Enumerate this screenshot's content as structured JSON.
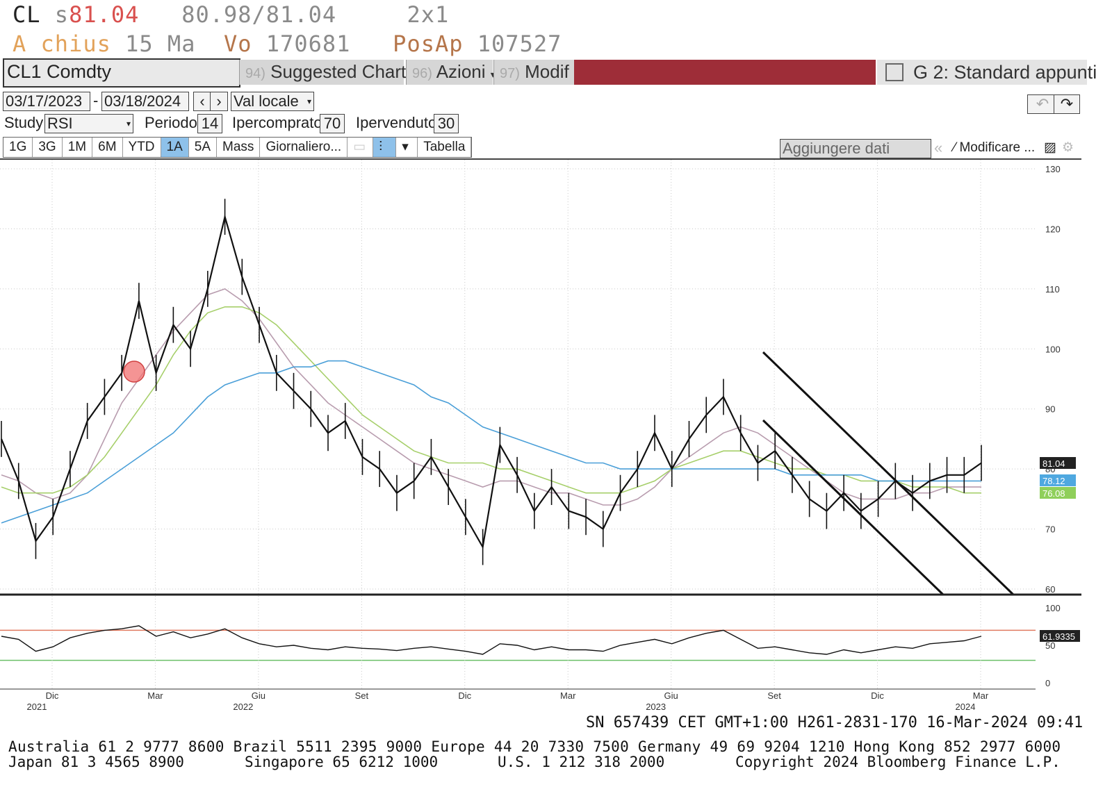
{
  "header": {
    "ticker": "CL",
    "last_prefix": "s",
    "last": "81.04",
    "bid_ask": "80.98/81.04",
    "size": "2x1",
    "line2": {
      "a": "A",
      "chius": "chius",
      "ma": "15 Ma",
      "vo_label": "Vo",
      "vo": "170681",
      "posap_label": "PosAp",
      "posap": "107527"
    }
  },
  "toolbar": {
    "security": "CL1 Comdty",
    "menu_suggested_num": "94)",
    "menu_suggested": "Suggested Charts",
    "menu_azioni_num": "96)",
    "menu_azioni": "Azioni",
    "menu_modif_num": "97)",
    "menu_modif": "Modif",
    "layout": "G 2: Standard appunti"
  },
  "controls": {
    "date_from": "03/17/2023",
    "date_to": "03/18/2024",
    "dash": "-",
    "currency": "Val locale",
    "study_label": "Study",
    "study_value": "RSI",
    "periodo_label": "Periodo",
    "periodo_value": "14",
    "ipercomprato_label": "Ipercomprato",
    "ipercomprato_value": "70",
    "ipervenduto_label": "Ipervenduto",
    "ipervenduto_value": "30",
    "periods": [
      "1G",
      "3G",
      "1M",
      "6M",
      "YTD",
      "1A",
      "5A",
      "Mass",
      "Giornaliero..."
    ],
    "selected_period": "1A",
    "tabella": "Tabella",
    "aggiungere": "Aggiungere dati",
    "modificare": "Modificare ..."
  },
  "chart_data": {
    "type": "line",
    "price_axis": {
      "ylim": [
        60,
        130
      ],
      "ticks": [
        60,
        70,
        80,
        90,
        100,
        110,
        120,
        130
      ]
    },
    "rsi_axis": {
      "ylim": [
        0,
        100
      ],
      "ticks": [
        0,
        50,
        100
      ],
      "overbought": 70,
      "oversold": 30
    },
    "x_labels": [
      {
        "month": "Dic",
        "year": "2021"
      },
      {
        "month": "Mar",
        "year": ""
      },
      {
        "month": "Giu",
        "year": "2022"
      },
      {
        "month": "Set",
        "year": ""
      },
      {
        "month": "Dic",
        "year": ""
      },
      {
        "month": "Mar",
        "year": ""
      },
      {
        "month": "Giu",
        "year": "2023"
      },
      {
        "month": "Set",
        "year": ""
      },
      {
        "month": "Dic",
        "year": ""
      },
      {
        "month": "Mar",
        "year": "2024"
      }
    ],
    "series": [
      {
        "key": "price",
        "color": "#111111",
        "values": [
          85,
          78,
          68,
          72,
          80,
          88,
          92,
          96,
          108,
          96,
          104,
          100,
          110,
          122,
          112,
          104,
          96,
          93,
          90,
          86,
          88,
          82,
          80,
          76,
          78,
          82,
          77,
          72,
          67,
          84,
          79,
          73,
          77,
          73,
          72,
          70,
          76,
          80,
          86,
          80,
          85,
          89,
          92,
          86,
          81,
          83,
          79,
          75,
          73,
          76,
          73,
          75,
          78,
          76,
          78,
          79,
          79,
          81
        ]
      },
      {
        "key": "ma_fast",
        "color": "#b89cae",
        "values": [
          79,
          78,
          76,
          75,
          76,
          79,
          85,
          91,
          95,
          99,
          103,
          106,
          109,
          110,
          108,
          105,
          101,
          97,
          94,
          91,
          89,
          87,
          85,
          83,
          81,
          80,
          79,
          78,
          77,
          78,
          78,
          77,
          76,
          76,
          75,
          74,
          74,
          75,
          77,
          80,
          82,
          84,
          86,
          87,
          86,
          84,
          82,
          80,
          78,
          76,
          75,
          75,
          75,
          76,
          76,
          77,
          77,
          77
        ]
      },
      {
        "key": "ma_mid",
        "color": "#a6cf6a",
        "values": [
          77,
          76,
          76,
          76,
          77,
          79,
          82,
          86,
          90,
          94,
          99,
          103,
          106,
          107,
          107,
          106,
          104,
          101,
          98,
          95,
          92,
          89,
          87,
          85,
          83,
          82,
          81,
          81,
          81,
          80,
          80,
          79,
          78,
          77,
          76,
          76,
          76,
          77,
          78,
          80,
          81,
          82,
          83,
          83,
          82,
          81,
          80,
          80,
          79,
          79,
          78,
          78,
          78,
          77,
          77,
          77,
          76,
          76
        ]
      },
      {
        "key": "ma_slow",
        "color": "#4a9fd8",
        "values": [
          71,
          72,
          73,
          74,
          75,
          76,
          78,
          80,
          82,
          84,
          86,
          89,
          92,
          94,
          95,
          96,
          96,
          97,
          97,
          98,
          98,
          97,
          96,
          95,
          94,
          92,
          91,
          89,
          87,
          86,
          85,
          84,
          83,
          82,
          81,
          81,
          80,
          80,
          80,
          80,
          80,
          80,
          80,
          80,
          80,
          80,
          79,
          79,
          79,
          79,
          79,
          78,
          78,
          78,
          78,
          78,
          78,
          78
        ]
      },
      {
        "key": "rsi",
        "color": "#111111",
        "values": [
          62,
          58,
          42,
          48,
          60,
          66,
          70,
          72,
          76,
          62,
          68,
          60,
          65,
          72,
          60,
          52,
          48,
          50,
          46,
          44,
          48,
          46,
          45,
          43,
          46,
          48,
          45,
          42,
          38,
          52,
          50,
          44,
          48,
          44,
          44,
          42,
          50,
          54,
          58,
          52,
          60,
          66,
          70,
          58,
          46,
          48,
          44,
          40,
          38,
          44,
          40,
          44,
          48,
          46,
          52,
          54,
          56,
          62
        ]
      }
    ],
    "last_labels": [
      {
        "text": "81.04",
        "bg": "#222222",
        "fg": "#ffffff",
        "value": 81.04
      },
      {
        "text": "78.12",
        "bg": "#4fa8e0",
        "fg": "#ffffff",
        "value": 78.12
      },
      {
        "text": "76.08",
        "bg": "#8fcf5a",
        "fg": "#ffffff",
        "value": 76.08
      },
      {
        "text": "61.9335",
        "bg": "#222222",
        "fg": "#ffffff",
        "value": 61.9335
      }
    ]
  },
  "footer": {
    "line1": "SN 657439 CET  GMT+1:00 H261-2831-170 16-Mar-2024 09:41",
    "line2": "Australia 61 2 9777 8600 Brazil 5511 2395 9000 Europe 44 20 7330 7500 Germany 49 69 9204 1210 Hong Kong 852 2977 6000",
    "line3a": "Japan 81 3 4565 8900",
    "line3b": "Singapore 65 6212 1000",
    "line3c": "U.S. 1 212 318 2000",
    "line3d": "Copyright 2024 Bloomberg Finance L.P."
  }
}
